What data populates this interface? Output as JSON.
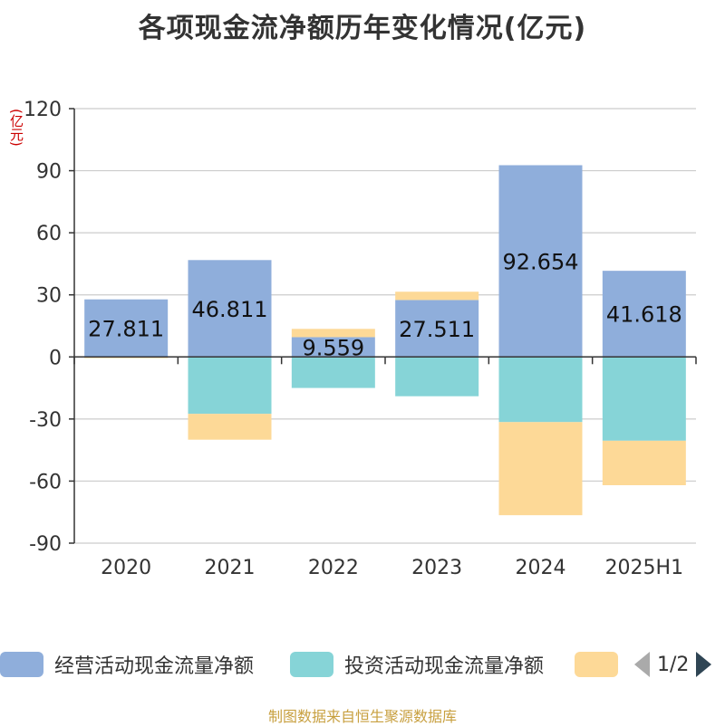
{
  "chart_data": {
    "type": "bar",
    "stacked": true,
    "title": "各项现金流净额历年变化情况(亿元)",
    "unit_label": "(亿元)",
    "categories": [
      "2020",
      "2021",
      "2022",
      "2023",
      "2024",
      "2025H1"
    ],
    "ylim": [
      -90,
      120
    ],
    "yticks": [
      120,
      90,
      60,
      30,
      0,
      -30,
      -60,
      -90
    ],
    "grid": true,
    "legend_position": "bottom",
    "series": [
      {
        "name": "经营活动现金流量净额",
        "color": "#8faedb",
        "values": [
          27.811,
          46.811,
          9.559,
          27.511,
          92.654,
          41.618
        ],
        "labels": [
          "27.811",
          "46.811",
          "9.559",
          "27.511",
          "92.654",
          "41.618"
        ]
      },
      {
        "name": "投资活动现金流量净额",
        "color": "#86d4d7",
        "values": [
          -0.3,
          -27.5,
          -15.0,
          -19.0,
          -31.5,
          -40.5
        ]
      },
      {
        "name": "",
        "color": "#fdd997",
        "values": [
          -0.3,
          -12.5,
          4.0,
          4.0,
          -45.0,
          -21.5
        ]
      }
    ]
  },
  "legend": {
    "items": [
      {
        "label": "经营活动现金流量净额",
        "color": "#8faedb"
      },
      {
        "label": "投资活动现金流量净额",
        "color": "#86d4d7"
      },
      {
        "label": "",
        "color": "#fdd997"
      }
    ],
    "page": "1/2"
  },
  "source": "制图数据来自恒生聚源数据库"
}
